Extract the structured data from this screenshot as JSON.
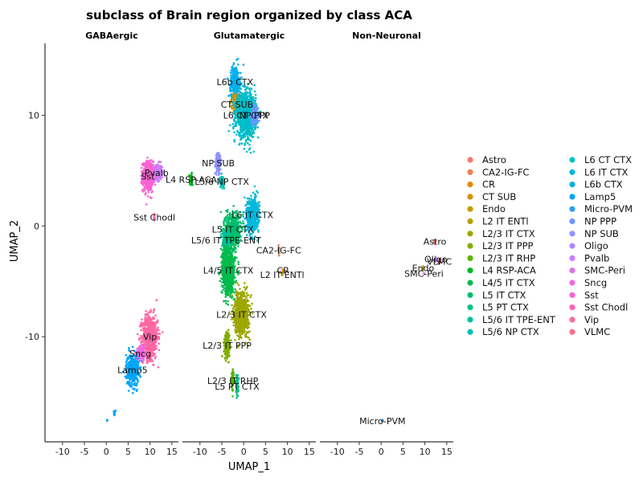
{
  "chart_data": {
    "type": "scatter",
    "title": "subclass of Brain region organized by class ACA",
    "xlabel": "UMAP_1",
    "ylabel": "UMAP_2",
    "xlim": [
      -14,
      16.5
    ],
    "ylim": [
      -19.5,
      16.5
    ],
    "x_ticks": [
      -10,
      -5,
      0,
      5,
      10,
      15
    ],
    "y_ticks": [
      10,
      0,
      -10
    ],
    "grid": false,
    "legend_position": "right",
    "panels": [
      {
        "name": "GABAergic",
        "clusters": [
          {
            "subclass": "Pvalb",
            "x": 11.5,
            "y": 4.8,
            "sx": 1.2,
            "sy": 0.7,
            "n": 260,
            "label": "Pvalb"
          },
          {
            "subclass": "Sst",
            "x": 9.5,
            "y": 4.5,
            "sx": 1.0,
            "sy": 1.1,
            "n": 500,
            "label": "Sst"
          },
          {
            "subclass": "Sst Chodl",
            "x": 11.0,
            "y": 0.8,
            "sx": 0.1,
            "sy": 0.3,
            "n": 10,
            "label": "Sst Chodl"
          },
          {
            "subclass": "Vip",
            "x": 10.0,
            "y": -10.0,
            "sx": 1.5,
            "sy": 1.6,
            "n": 700,
            "label": "Vip"
          },
          {
            "subclass": "Sncg",
            "x": 7.8,
            "y": -11.5,
            "sx": 0.8,
            "sy": 0.5,
            "n": 150,
            "label": "Sncg"
          },
          {
            "subclass": "Lamp5",
            "x": 6.0,
            "y": -13.0,
            "sx": 1.2,
            "sy": 1.2,
            "n": 380,
            "label": "Lamp5"
          },
          {
            "subclass": "Lamp5",
            "x": 2.0,
            "y": -16.8,
            "sx": 0.25,
            "sy": 0.2,
            "n": 10,
            "label": ""
          },
          {
            "subclass": "Lamp5",
            "x": 0.2,
            "y": -17.6,
            "sx": 0.1,
            "sy": 0.1,
            "n": 3,
            "label": ""
          }
        ]
      },
      {
        "name": "Glutamatergic",
        "clusters": [
          {
            "subclass": "L6b CTX",
            "x": -2.0,
            "y": 13.0,
            "sx": 0.9,
            "sy": 1.2,
            "n": 350,
            "label": "L6b CTX"
          },
          {
            "subclass": "CT SUB",
            "x": -1.5,
            "y": 11.0,
            "sx": 0.9,
            "sy": 0.7,
            "n": 300,
            "label": "CT SUB"
          },
          {
            "subclass": "L6 CT CTX",
            "x": 0.5,
            "y": 10.0,
            "sx": 1.8,
            "sy": 1.6,
            "n": 1200,
            "label": "L6 CT CTX"
          },
          {
            "subclass": "NP PPP",
            "x": 2.5,
            "y": 10.0,
            "sx": 0.7,
            "sy": 0.6,
            "n": 150,
            "label": "NP PPP"
          },
          {
            "subclass": "NP SUB",
            "x": -5.8,
            "y": 5.7,
            "sx": 0.5,
            "sy": 0.8,
            "n": 160,
            "label": "NP SUB"
          },
          {
            "subclass": "L5/6 NP CTX",
            "x": -5.0,
            "y": 4.0,
            "sx": 0.4,
            "sy": 0.4,
            "n": 80,
            "label": "L5/6 NP CTX"
          },
          {
            "subclass": "L4 RSP-ACA",
            "x": -12.0,
            "y": 4.2,
            "sx": 0.3,
            "sy": 0.4,
            "n": 60,
            "label": "L4 RSP-ACA"
          },
          {
            "subclass": "L6 IT CTX",
            "x": 2.0,
            "y": 1.0,
            "sx": 1.2,
            "sy": 1.3,
            "n": 500,
            "label": "L6 IT CTX"
          },
          {
            "subclass": "L5 IT CTX",
            "x": -2.5,
            "y": -0.3,
            "sx": 1.4,
            "sy": 1.2,
            "n": 600,
            "label": "L5 IT CTX"
          },
          {
            "subclass": "L5/6 IT TPE-ENT",
            "x": -4.0,
            "y": -1.3,
            "sx": 0.8,
            "sy": 0.8,
            "n": 200,
            "label": "L5/6 IT TPE-ENT"
          },
          {
            "subclass": "L4/5 IT CTX",
            "x": -3.5,
            "y": -4.0,
            "sx": 1.2,
            "sy": 1.8,
            "n": 900,
            "label": "L4/5 IT CTX"
          },
          {
            "subclass": "CA2-IG-FC",
            "x": 8.0,
            "y": -2.2,
            "sx": 0.2,
            "sy": 0.3,
            "n": 15,
            "label": "CA2-IG-FC"
          },
          {
            "subclass": "CR",
            "x": 9.0,
            "y": -4.0,
            "sx": 0.15,
            "sy": 0.15,
            "n": 6,
            "label": "CR"
          },
          {
            "subclass": "L2 IT ENTl",
            "x": 8.8,
            "y": -4.4,
            "sx": 0.15,
            "sy": 0.15,
            "n": 5,
            "label": "L2 IT ENTl"
          },
          {
            "subclass": "L2/3 IT CTX",
            "x": -0.5,
            "y": -8.0,
            "sx": 1.3,
            "sy": 1.5,
            "n": 900,
            "label": "L2/3 IT CTX"
          },
          {
            "subclass": "L2/3 IT PPP",
            "x": -3.8,
            "y": -10.8,
            "sx": 0.6,
            "sy": 1.0,
            "n": 180,
            "label": "L2/3 IT PPP"
          },
          {
            "subclass": "L2/3 IT RHP",
            "x": -2.5,
            "y": -14.0,
            "sx": 0.3,
            "sy": 0.8,
            "n": 70,
            "label": "L2/3 IT RHP"
          },
          {
            "subclass": "L5 PT CTX",
            "x": -1.5,
            "y": -14.5,
            "sx": 0.3,
            "sy": 0.9,
            "n": 60,
            "label": "L5 PT CTX"
          }
        ]
      },
      {
        "name": "Non-Neuronal",
        "clusters": [
          {
            "subclass": "Astro",
            "x": 12.3,
            "y": -1.4,
            "sx": 0.2,
            "sy": 0.2,
            "n": 10,
            "label": "Astro"
          },
          {
            "subclass": "Oligo",
            "x": 12.5,
            "y": -3.0,
            "sx": 0.35,
            "sy": 0.15,
            "n": 14,
            "label": "Oligo"
          },
          {
            "subclass": "VLMC",
            "x": 13.3,
            "y": -3.2,
            "sx": 0.2,
            "sy": 0.15,
            "n": 8,
            "label": "VLMC"
          },
          {
            "subclass": "Endo",
            "x": 9.6,
            "y": -3.8,
            "sx": 0.15,
            "sy": 0.15,
            "n": 5,
            "label": "Endo"
          },
          {
            "subclass": "SMC-Peri",
            "x": 9.8,
            "y": -4.3,
            "sx": 0.1,
            "sy": 0.1,
            "n": 3,
            "label": "SMC-Peri"
          },
          {
            "subclass": "Micro-PVM",
            "x": 0.3,
            "y": -17.6,
            "sx": 0.15,
            "sy": 0.1,
            "n": 6,
            "label": "Micro-PVM"
          }
        ]
      }
    ],
    "legend": [
      {
        "name": "Astro",
        "color": "#F8766D"
      },
      {
        "name": "CA2-IG-FC",
        "color": "#EF7F49"
      },
      {
        "name": "CR",
        "color": "#E48800"
      },
      {
        "name": "CT SUB",
        "color": "#D69100"
      },
      {
        "name": "Endo",
        "color": "#C59900"
      },
      {
        "name": "L2 IT ENTl",
        "color": "#B3A000"
      },
      {
        "name": "L2/3 IT CTX",
        "color": "#9CA700"
      },
      {
        "name": "L2/3 IT PPP",
        "color": "#81AD00"
      },
      {
        "name": "L2/3 IT RHP",
        "color": "#5BB300"
      },
      {
        "name": "L4 RSP-ACA",
        "color": "#00B81F"
      },
      {
        "name": "L4/5 IT CTX",
        "color": "#00BB4E"
      },
      {
        "name": "L5 IT CTX",
        "color": "#00BE6C"
      },
      {
        "name": "L5 PT CTX",
        "color": "#00C086"
      },
      {
        "name": "L5/6 IT TPE-ENT",
        "color": "#00C19E"
      },
      {
        "name": "L5/6 NP CTX",
        "color": "#00C0B4"
      },
      {
        "name": "L6 CT CTX",
        "color": "#00BDC9"
      },
      {
        "name": "L6 IT CTX",
        "color": "#00B8DC"
      },
      {
        "name": "L6b CTX",
        "color": "#00B0EC"
      },
      {
        "name": "Lamp5",
        "color": "#00A5FA"
      },
      {
        "name": "Micro-PVM",
        "color": "#2D9CF8"
      },
      {
        "name": "NP PPP",
        "color": "#6797FF"
      },
      {
        "name": "NP SUB",
        "color": "#8F91FF"
      },
      {
        "name": "Oligo",
        "color": "#B088FF"
      },
      {
        "name": "Pvalb",
        "color": "#CB7DFF"
      },
      {
        "name": "SMC-Peri",
        "color": "#E070F2"
      },
      {
        "name": "Sncg",
        "color": "#EF67E3"
      },
      {
        "name": "Sst",
        "color": "#FA62D2"
      },
      {
        "name": "Sst Chodl",
        "color": "#FF63BC"
      },
      {
        "name": "Vip",
        "color": "#FF67A4"
      },
      {
        "name": "VLMC",
        "color": "#FD6D8B"
      }
    ]
  }
}
